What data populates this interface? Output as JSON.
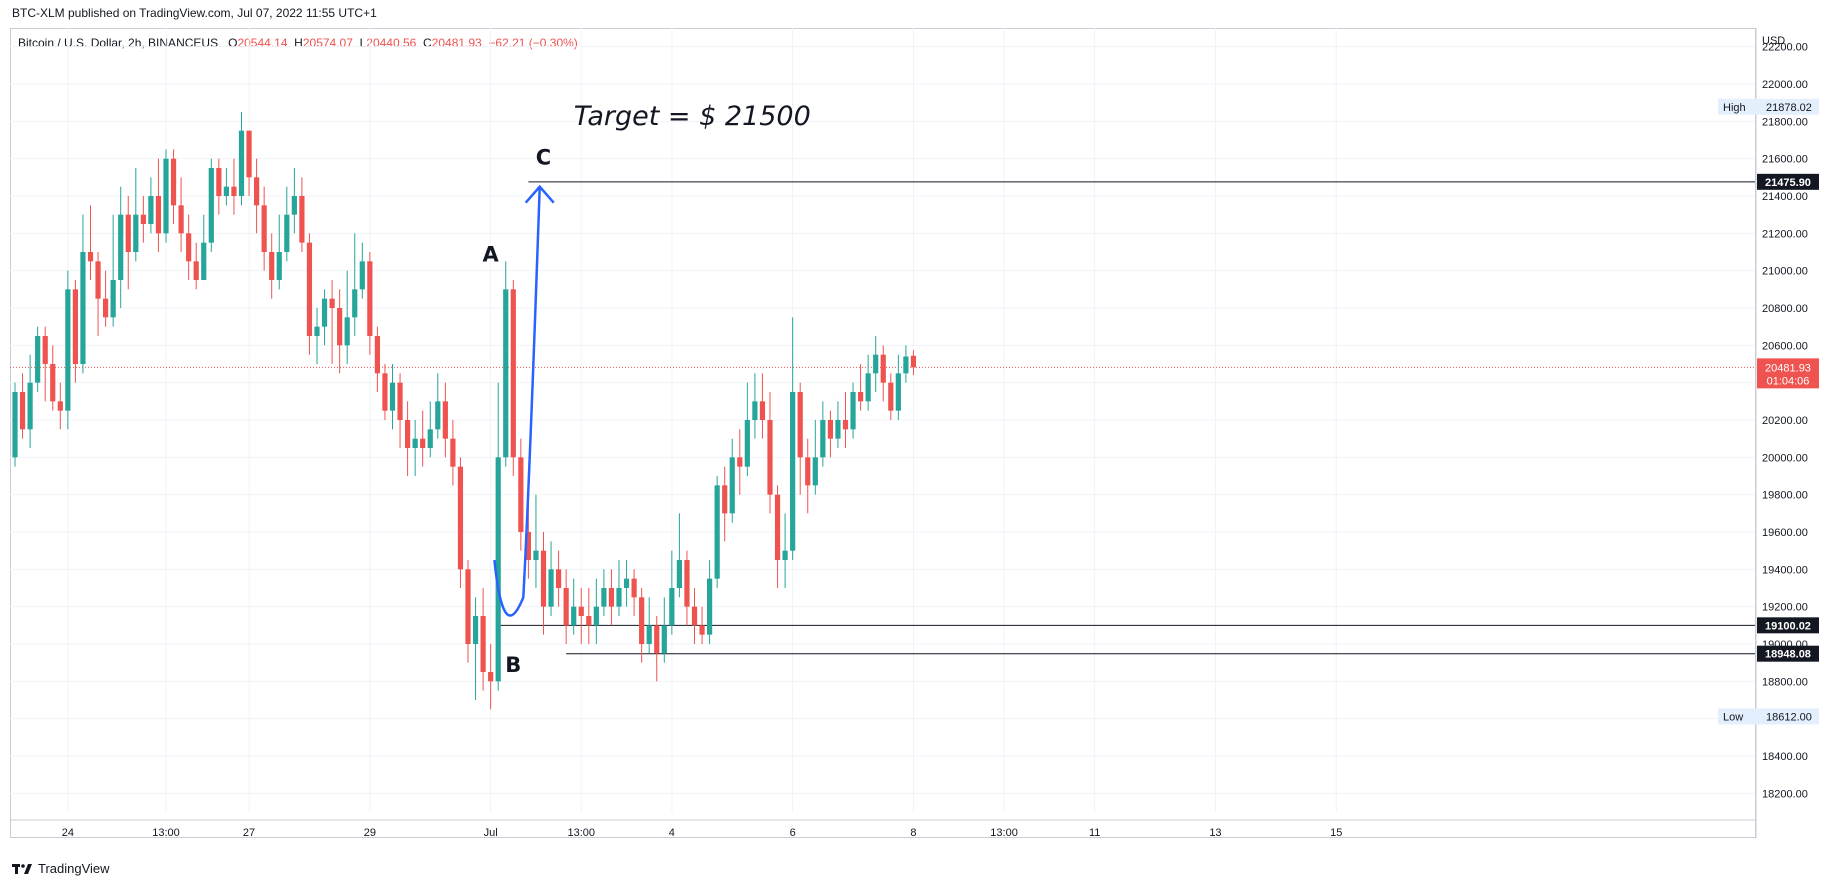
{
  "header": {
    "published": "BTC-XLM published on TradingView.com, Jul 07, 2022 11:55 UTC+1",
    "symbol": "Bitcoin / U.S. Dollar, 2h, BINANCEUS",
    "open_label": "O",
    "open": "20544.14",
    "high_label": "H",
    "high": "20574.07",
    "low_label": "L",
    "low": "20440.56",
    "close_label": "C",
    "close": "20481.93",
    "change": "−62.21 (−0.30%)"
  },
  "footer": {
    "brand": "TradingView",
    "logo_icon": "tradingview-logo-icon"
  },
  "colors": {
    "up": "#26a69a",
    "down": "#ef5350",
    "arrow": "#2962ff",
    "grid": "#f0f3fa"
  },
  "chart_data": {
    "type": "candlestick",
    "title": "",
    "currency_label": "USD",
    "ylim": [
      18100,
      22300
    ],
    "y_ticks": [
      "22200.00",
      "22000.00",
      "21800.00",
      "21600.00",
      "21400.00",
      "21200.00",
      "21000.00",
      "20800.00",
      "20600.00",
      "20400.00",
      "20200.00",
      "20000.00",
      "19800.00",
      "19600.00",
      "19400.00",
      "19200.00",
      "19000.00",
      "18800.00",
      "18600.00",
      "18400.00",
      "18200.00"
    ],
    "x_ticks": [
      {
        "label": "24",
        "bar": 7
      },
      {
        "label": "13:00",
        "bar": 20
      },
      {
        "label": "27",
        "bar": 31
      },
      {
        "label": "29",
        "bar": 47
      },
      {
        "label": "Jul",
        "bar": 63
      },
      {
        "label": "13:00",
        "bar": 75
      },
      {
        "label": "4",
        "bar": 87
      },
      {
        "label": "6",
        "bar": 103
      },
      {
        "label": "8",
        "bar": 119
      },
      {
        "label": "13:00",
        "bar": 131
      },
      {
        "label": "11",
        "bar": 143
      },
      {
        "label": "13",
        "bar": 159
      },
      {
        "label": "15",
        "bar": 175
      }
    ],
    "candles": [
      [
        20000,
        20350,
        19950,
        20400
      ],
      [
        20350,
        20150,
        20100,
        20450
      ],
      [
        20150,
        20400,
        20050,
        20550
      ],
      [
        20400,
        20650,
        20350,
        20700
      ],
      [
        20650,
        20500,
        20300,
        20700
      ],
      [
        20500,
        20300,
        20250,
        20600
      ],
      [
        20300,
        20250,
        20150,
        20400
      ],
      [
        20250,
        20900,
        20150,
        21000
      ],
      [
        20900,
        20500,
        20400,
        20950
      ],
      [
        20500,
        21100,
        20450,
        21300
      ],
      [
        21100,
        21050,
        20950,
        21350
      ],
      [
        21050,
        20850,
        20650,
        21100
      ],
      [
        20850,
        20750,
        20700,
        21000
      ],
      [
        20750,
        20950,
        20700,
        21300
      ],
      [
        20950,
        21300,
        20800,
        21450
      ],
      [
        21300,
        21100,
        20900,
        21400
      ],
      [
        21100,
        21300,
        21050,
        21550
      ],
      [
        21300,
        21250,
        21150,
        21400
      ],
      [
        21250,
        21400,
        21200,
        21500
      ],
      [
        21400,
        21200,
        21100,
        21600
      ],
      [
        21200,
        21600,
        21150,
        21650
      ],
      [
        21600,
        21350,
        21250,
        21650
      ],
      [
        21350,
        21200,
        21100,
        21500
      ],
      [
        21200,
        21050,
        20950,
        21300
      ],
      [
        21050,
        20950,
        20900,
        21150
      ],
      [
        20950,
        21150,
        20950,
        21300
      ],
      [
        21150,
        21550,
        21100,
        21600
      ],
      [
        21550,
        21400,
        21300,
        21600
      ],
      [
        21400,
        21450,
        21350,
        21550
      ],
      [
        21450,
        21400,
        21300,
        21600
      ],
      [
        21400,
        21750,
        21350,
        21850
      ],
      [
        21750,
        21500,
        21400,
        21750
      ],
      [
        21500,
        21350,
        21200,
        21600
      ],
      [
        21350,
        21100,
        21000,
        21450
      ],
      [
        21100,
        20950,
        20850,
        21200
      ],
      [
        20950,
        21100,
        20900,
        21300
      ],
      [
        21100,
        21300,
        21050,
        21450
      ],
      [
        21300,
        21400,
        21200,
        21550
      ],
      [
        21400,
        21150,
        21100,
        21500
      ],
      [
        21150,
        20650,
        20550,
        21200
      ],
      [
        20650,
        20700,
        20500,
        20800
      ],
      [
        20700,
        20850,
        20600,
        20900
      ],
      [
        20850,
        20800,
        20500,
        20950
      ],
      [
        20800,
        20600,
        20450,
        20900
      ],
      [
        20600,
        20750,
        20500,
        21000
      ],
      [
        20750,
        20900,
        20650,
        21200
      ],
      [
        20900,
        21050,
        20850,
        21150
      ],
      [
        21050,
        20650,
        20550,
        21100
      ],
      [
        20650,
        20450,
        20350,
        20700
      ],
      [
        20450,
        20250,
        20200,
        20500
      ],
      [
        20250,
        20400,
        20150,
        20500
      ],
      [
        20400,
        20200,
        20050,
        20450
      ],
      [
        20200,
        20050,
        19900,
        20300
      ],
      [
        20050,
        20100,
        19900,
        20200
      ],
      [
        20100,
        20050,
        19950,
        20250
      ],
      [
        20050,
        20150,
        20000,
        20300
      ],
      [
        20150,
        20300,
        20100,
        20450
      ],
      [
        20300,
        20100,
        20000,
        20400
      ],
      [
        20100,
        19950,
        19850,
        20200
      ],
      [
        19950,
        19400,
        19300,
        20000
      ],
      [
        19400,
        19000,
        18900,
        19450
      ],
      [
        19000,
        19150,
        18700,
        19250
      ],
      [
        19150,
        18850,
        18750,
        19300
      ],
      [
        18850,
        18800,
        18650,
        19000
      ],
      [
        18800,
        20000,
        18750,
        20400
      ],
      [
        20000,
        20900,
        19950,
        21050
      ],
      [
        20900,
        20000,
        19900,
        20950
      ],
      [
        20000,
        19600,
        19500,
        20100
      ],
      [
        19600,
        19450,
        19350,
        19800
      ],
      [
        19450,
        19500,
        19300,
        19800
      ],
      [
        19500,
        19200,
        19050,
        19600
      ],
      [
        19200,
        19400,
        19150,
        19550
      ],
      [
        19400,
        19300,
        19200,
        19500
      ],
      [
        19300,
        19100,
        19000,
        19400
      ],
      [
        19100,
        19200,
        19050,
        19350
      ],
      [
        19200,
        19150,
        19000,
        19300
      ],
      [
        19150,
        19100,
        19000,
        19300
      ],
      [
        19100,
        19200,
        19000,
        19350
      ],
      [
        19200,
        19300,
        19150,
        19400
      ],
      [
        19300,
        19200,
        19100,
        19400
      ],
      [
        19200,
        19300,
        19150,
        19450
      ],
      [
        19300,
        19350,
        19200,
        19450
      ],
      [
        19350,
        19250,
        19150,
        19400
      ],
      [
        19250,
        19000,
        18900,
        19300
      ],
      [
        19000,
        19100,
        18950,
        19250
      ],
      [
        19100,
        18950,
        18800,
        19150
      ],
      [
        18950,
        19100,
        18900,
        19250
      ],
      [
        19100,
        19300,
        19050,
        19500
      ],
      [
        19300,
        19450,
        19250,
        19700
      ],
      [
        19450,
        19200,
        19100,
        19500
      ],
      [
        19200,
        19100,
        19000,
        19300
      ],
      [
        19100,
        19050,
        19000,
        19200
      ],
      [
        19050,
        19350,
        19000,
        19450
      ],
      [
        19350,
        19850,
        19300,
        19900
      ],
      [
        19850,
        19700,
        19550,
        19950
      ],
      [
        19700,
        20000,
        19650,
        20100
      ],
      [
        20000,
        19950,
        19800,
        20150
      ],
      [
        19950,
        20200,
        19900,
        20400
      ],
      [
        20200,
        20300,
        20100,
        20450
      ],
      [
        20300,
        20200,
        20100,
        20450
      ],
      [
        20200,
        19800,
        19700,
        20350
      ],
      [
        19800,
        19450,
        19300,
        19850
      ],
      [
        19450,
        19500,
        19300,
        19700
      ],
      [
        19500,
        20350,
        19450,
        20750
      ],
      [
        20350,
        20000,
        19800,
        20400
      ],
      [
        20000,
        19850,
        19700,
        20100
      ],
      [
        19850,
        20000,
        19800,
        20200
      ],
      [
        20000,
        20200,
        19950,
        20300
      ],
      [
        20200,
        20100,
        20000,
        20250
      ],
      [
        20100,
        20200,
        20050,
        20300
      ],
      [
        20200,
        20150,
        20050,
        20350
      ],
      [
        20150,
        20350,
        20100,
        20400
      ],
      [
        20350,
        20300,
        20250,
        20500
      ],
      [
        20300,
        20450,
        20250,
        20550
      ],
      [
        20450,
        20550,
        20350,
        20650
      ],
      [
        20550,
        20400,
        20300,
        20600
      ],
      [
        20400,
        20250,
        20200,
        20450
      ],
      [
        20250,
        20450,
        20200,
        20550
      ],
      [
        20450,
        20540,
        20400,
        20600
      ],
      [
        20544.14,
        20481.93,
        20440.56,
        20574.07
      ]
    ],
    "price_levels": [
      {
        "value": 21475.9,
        "label": "21475.90",
        "from_bar": 68
      },
      {
        "value": 19100.02,
        "label": "19100.02",
        "from_bar": 64
      },
      {
        "value": 18948.08,
        "label": "18948.08",
        "from_bar": 73
      }
    ],
    "current_price": {
      "value": 20481.93,
      "label": "20481.93",
      "countdown": "01:04:06"
    },
    "high_marker": {
      "label": "High",
      "value": 21878.02,
      "text": "21878.02"
    },
    "low_marker": {
      "label": "Low",
      "value": 18612.0,
      "text": "18612.00"
    },
    "annotations": [
      {
        "text": "A",
        "bar": 63,
        "price": 21050
      },
      {
        "text": "B",
        "bar": 66,
        "price": 18850
      },
      {
        "text": "C",
        "bar": 70,
        "price": 21570
      },
      {
        "text": "Target = $ 21500",
        "bar": 74,
        "price": 21780
      }
    ],
    "arrow_path_prices": [
      {
        "bar": 63.5,
        "price": 19450
      },
      {
        "bar": 66,
        "price": 19250
      },
      {
        "bar": 69.5,
        "price": 21450
      }
    ]
  }
}
